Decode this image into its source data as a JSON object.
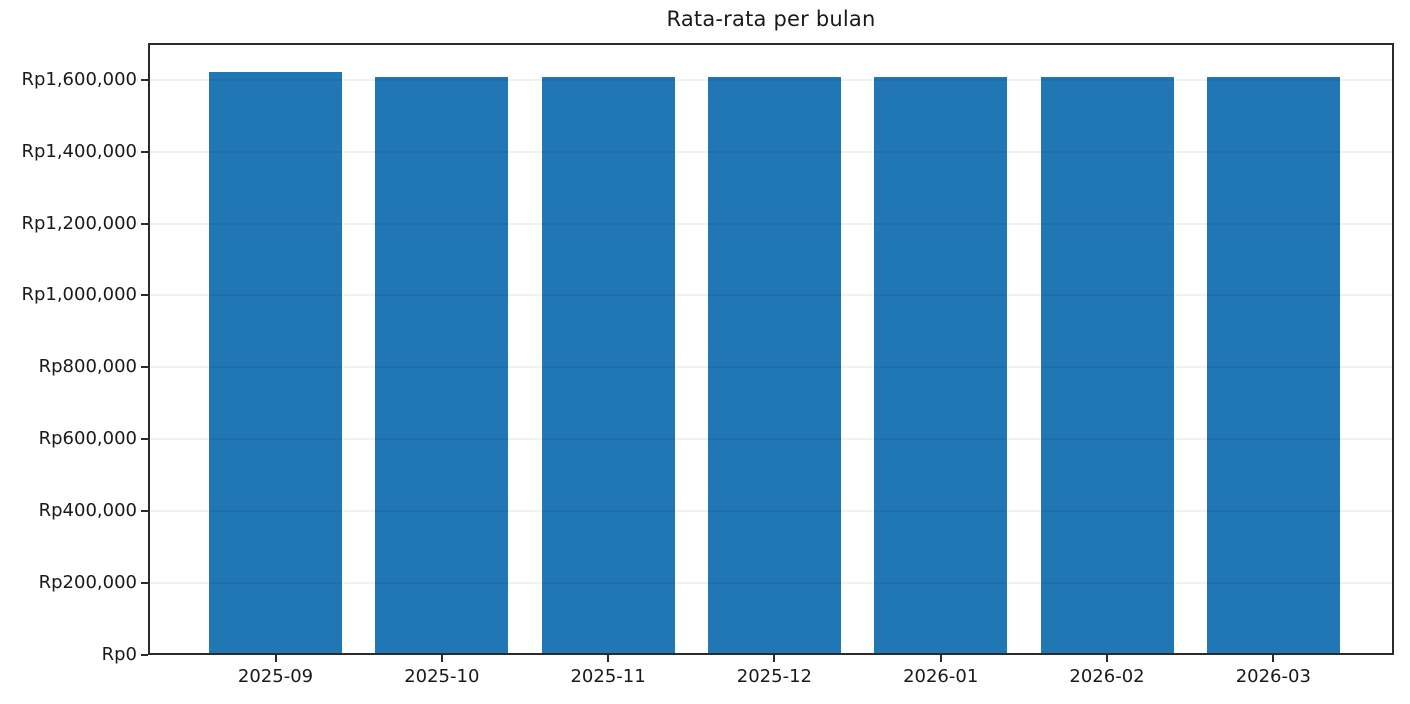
{
  "figure": {
    "background_color": "#ffffff",
    "spine_color": "#2b2b2b",
    "grid_visible": true
  },
  "chart_data": {
    "type": "bar",
    "title": "Rata-rata per bulan",
    "xlabel": "",
    "ylabel": "",
    "categories": [
      "2025-09",
      "2025-10",
      "2025-11",
      "2025-12",
      "2026-01",
      "2026-02",
      "2026-03"
    ],
    "values": [
      1621000,
      1608000,
      1608000,
      1608000,
      1608000,
      1608000,
      1608000
    ],
    "bar_color": "#2176b4",
    "ylim": [
      0,
      1702050
    ],
    "y_ticks": [
      {
        "value": 0,
        "label": "Rp0"
      },
      {
        "value": 200000,
        "label": "Rp200,000"
      },
      {
        "value": 400000,
        "label": "Rp400,000"
      },
      {
        "value": 600000,
        "label": "Rp600,000"
      },
      {
        "value": 800000,
        "label": "Rp800,000"
      },
      {
        "value": 1000000,
        "label": "Rp1,000,000"
      },
      {
        "value": 1200000,
        "label": "Rp1,200,000"
      },
      {
        "value": 1400000,
        "label": "Rp1,400,000"
      },
      {
        "value": 1600000,
        "label": "Rp1,600,000"
      }
    ],
    "currency_prefix": "Rp",
    "legend": null
  }
}
